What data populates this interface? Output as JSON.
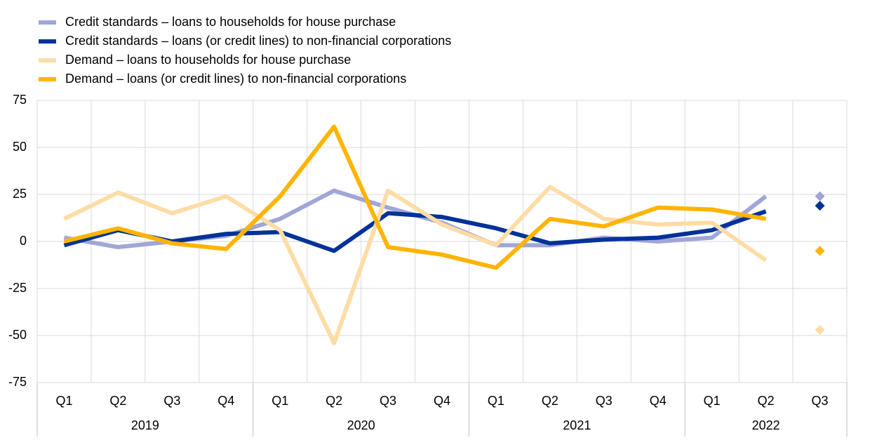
{
  "chart_data": {
    "type": "line",
    "groups": [
      {
        "name": "2019",
        "categories": [
          "Q1",
          "Q2",
          "Q3",
          "Q4"
        ]
      },
      {
        "name": "2020",
        "categories": [
          "Q1",
          "Q2",
          "Q3",
          "Q4"
        ]
      },
      {
        "name": "2021",
        "categories": [
          "Q1",
          "Q2",
          "Q3",
          "Q4"
        ]
      },
      {
        "name": "2022",
        "categories": [
          "Q1",
          "Q2",
          "Q3"
        ]
      }
    ],
    "series": [
      {
        "name": "Credit standards – loans to households for house purchase",
        "color": "#a0a6d6",
        "values": [
          2,
          -3,
          0,
          3,
          12,
          27,
          18,
          10,
          -2,
          -2,
          2,
          0,
          2,
          24,
          null
        ],
        "expected": 24
      },
      {
        "name": "Credit standards – loans (or credit lines) to non-financial corporations",
        "color": "#003299",
        "values": [
          -2,
          6,
          0,
          4,
          5,
          -5,
          15,
          13,
          7,
          -1,
          1,
          2,
          6,
          16,
          null
        ],
        "expected": 19
      },
      {
        "name": "Demand – loans to households for house purchase",
        "color": "#fedca5",
        "values": [
          12,
          26,
          15,
          24,
          6,
          -54,
          27,
          9,
          -2,
          29,
          12,
          9,
          10,
          -10,
          null
        ],
        "expected": -47
      },
      {
        "name": "Demand – loans (or credit lines) to non-financial corporations",
        "color": "#ffb400",
        "values": [
          0,
          7,
          -1,
          -4,
          24,
          61,
          -3,
          -7,
          -14,
          12,
          8,
          18,
          17,
          12,
          null
        ],
        "expected": -5
      }
    ],
    "ylim": [
      -75,
      75
    ],
    "yticks": [
      -75,
      -50,
      -25,
      0,
      25,
      50,
      75
    ],
    "grid": true,
    "legend": "top-left"
  }
}
